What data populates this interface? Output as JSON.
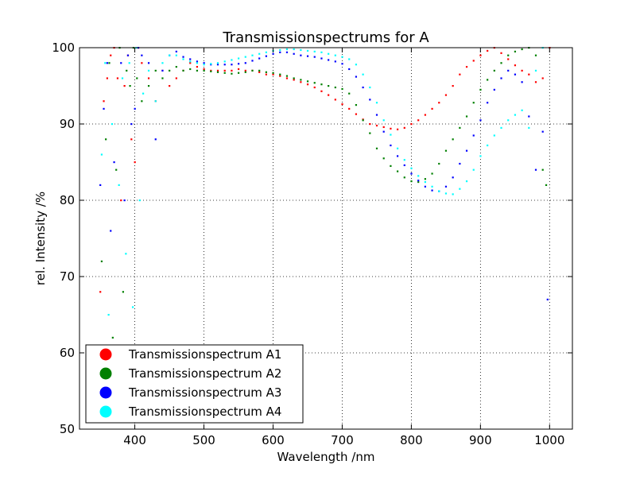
{
  "chart_data": {
    "type": "scatter",
    "title": "Transmissionspectrums for A",
    "xlabel": "Wavelength  /nm",
    "ylabel": "rel. Intensity  /%",
    "xlim": [
      320,
      1033
    ],
    "ylim": [
      50,
      100
    ],
    "xticks": [
      400,
      500,
      600,
      700,
      800,
      900,
      1000
    ],
    "yticks": [
      50,
      60,
      70,
      80,
      90,
      100
    ],
    "xtick_labels": [
      "400",
      "500",
      "600",
      "700",
      "800",
      "900",
      "1000"
    ],
    "ytick_labels": [
      "50",
      "60",
      "70",
      "80",
      "90",
      "100"
    ],
    "grid": true,
    "grid_style": "dotted",
    "legend_position": "lower-left",
    "series": [
      {
        "name": "Transmissionspectrum A1",
        "color": "#ff0000",
        "points": [
          [
            350,
            68
          ],
          [
            355,
            93
          ],
          [
            360,
            96
          ],
          [
            365,
            99
          ],
          [
            370,
            100
          ],
          [
            375,
            96
          ],
          [
            380,
            80
          ],
          [
            385,
            95
          ],
          [
            390,
            99
          ],
          [
            395,
            88
          ],
          [
            400,
            85
          ],
          [
            405,
            100
          ],
          [
            410,
            98
          ],
          [
            420,
            96
          ],
          [
            430,
            93
          ],
          [
            440,
            97
          ],
          [
            450,
            95
          ],
          [
            460,
            96
          ],
          [
            470,
            97
          ],
          [
            480,
            98
          ],
          [
            490,
            97.5
          ],
          [
            500,
            97.2
          ],
          [
            510,
            97
          ],
          [
            520,
            97
          ],
          [
            530,
            97
          ],
          [
            540,
            97
          ],
          [
            550,
            97.2
          ],
          [
            560,
            97
          ],
          [
            570,
            97
          ],
          [
            580,
            96.8
          ],
          [
            590,
            96.5
          ],
          [
            600,
            96.5
          ],
          [
            610,
            96.3
          ],
          [
            620,
            96
          ],
          [
            630,
            95.8
          ],
          [
            640,
            95.5
          ],
          [
            650,
            95.2
          ],
          [
            660,
            94.8
          ],
          [
            670,
            94.3
          ],
          [
            680,
            93.8
          ],
          [
            690,
            93.2
          ],
          [
            700,
            92.6
          ],
          [
            710,
            92
          ],
          [
            720,
            91.3
          ],
          [
            730,
            90.6
          ],
          [
            740,
            90
          ],
          [
            750,
            89.8
          ],
          [
            760,
            89.6
          ],
          [
            770,
            89.4
          ],
          [
            780,
            89.3
          ],
          [
            790,
            89.5
          ],
          [
            800,
            90
          ],
          [
            810,
            90.5
          ],
          [
            820,
            91.2
          ],
          [
            830,
            92
          ],
          [
            840,
            92.8
          ],
          [
            850,
            93.8
          ],
          [
            860,
            95
          ],
          [
            870,
            96.5
          ],
          [
            880,
            97.5
          ],
          [
            890,
            98.3
          ],
          [
            900,
            99
          ],
          [
            910,
            99.6
          ],
          [
            920,
            100
          ],
          [
            930,
            99.3
          ],
          [
            940,
            98.5
          ],
          [
            950,
            97.7
          ],
          [
            960,
            97
          ],
          [
            970,
            96.5
          ],
          [
            980,
            95.5
          ],
          [
            990,
            96
          ],
          [
            1000,
            100
          ]
        ]
      },
      {
        "name": "Transmissionspectrum A2",
        "color": "#008000",
        "points": [
          [
            352,
            72
          ],
          [
            358,
            88
          ],
          [
            363,
            98
          ],
          [
            368,
            62
          ],
          [
            373,
            84
          ],
          [
            378,
            100
          ],
          [
            383,
            68
          ],
          [
            388,
            97
          ],
          [
            393,
            95
          ],
          [
            398,
            100
          ],
          [
            403,
            96
          ],
          [
            410,
            93
          ],
          [
            420,
            95
          ],
          [
            430,
            97
          ],
          [
            440,
            96
          ],
          [
            450,
            97
          ],
          [
            460,
            97.5
          ],
          [
            470,
            97
          ],
          [
            480,
            97.2
          ],
          [
            490,
            97
          ],
          [
            500,
            97
          ],
          [
            510,
            96.9
          ],
          [
            520,
            96.8
          ],
          [
            530,
            96.7
          ],
          [
            540,
            96.6
          ],
          [
            550,
            96.7
          ],
          [
            560,
            96.8
          ],
          [
            570,
            97
          ],
          [
            580,
            97
          ],
          [
            590,
            96.8
          ],
          [
            600,
            96.7
          ],
          [
            610,
            96.5
          ],
          [
            620,
            96.3
          ],
          [
            630,
            96
          ],
          [
            640,
            95.8
          ],
          [
            650,
            95.6
          ],
          [
            660,
            95.4
          ],
          [
            670,
            95.2
          ],
          [
            680,
            95
          ],
          [
            690,
            94.8
          ],
          [
            700,
            94.6
          ],
          [
            710,
            94
          ],
          [
            720,
            92.5
          ],
          [
            730,
            90.5
          ],
          [
            740,
            88.8
          ],
          [
            750,
            86.8
          ],
          [
            760,
            85.5
          ],
          [
            770,
            84.5
          ],
          [
            780,
            83.8
          ],
          [
            790,
            83
          ],
          [
            800,
            82.5
          ],
          [
            810,
            82.4
          ],
          [
            820,
            82.8
          ],
          [
            830,
            83.5
          ],
          [
            840,
            84.8
          ],
          [
            850,
            86.5
          ],
          [
            860,
            88
          ],
          [
            870,
            89.5
          ],
          [
            880,
            91
          ],
          [
            890,
            92.8
          ],
          [
            900,
            94.5
          ],
          [
            910,
            95.8
          ],
          [
            920,
            97
          ],
          [
            930,
            98
          ],
          [
            940,
            99
          ],
          [
            950,
            99.5
          ],
          [
            960,
            99.8
          ],
          [
            970,
            100
          ],
          [
            980,
            99
          ],
          [
            990,
            84
          ],
          [
            995,
            82
          ]
        ]
      },
      {
        "name": "Transmissionspectrum A3",
        "color": "#0000ff",
        "points": [
          [
            350,
            82
          ],
          [
            355,
            92
          ],
          [
            360,
            98
          ],
          [
            365,
            76
          ],
          [
            370,
            85
          ],
          [
            375,
            57
          ],
          [
            380,
            98
          ],
          [
            385,
            80
          ],
          [
            390,
            99
          ],
          [
            395,
            90
          ],
          [
            400,
            92
          ],
          [
            405,
            100
          ],
          [
            410,
            99
          ],
          [
            420,
            98
          ],
          [
            430,
            88
          ],
          [
            440,
            97
          ],
          [
            450,
            99
          ],
          [
            460,
            99.5
          ],
          [
            470,
            98.8
          ],
          [
            480,
            98.5
          ],
          [
            490,
            98.2
          ],
          [
            500,
            98
          ],
          [
            510,
            97.8
          ],
          [
            520,
            97.8
          ],
          [
            530,
            97.8
          ],
          [
            540,
            97.8
          ],
          [
            550,
            97.9
          ],
          [
            560,
            98
          ],
          [
            570,
            98.3
          ],
          [
            580,
            98.6
          ],
          [
            590,
            98.9
          ],
          [
            600,
            99.2
          ],
          [
            610,
            99.4
          ],
          [
            620,
            99.4
          ],
          [
            630,
            99.2
          ],
          [
            640,
            99
          ],
          [
            650,
            98.9
          ],
          [
            660,
            98.8
          ],
          [
            670,
            98.6
          ],
          [
            680,
            98.4
          ],
          [
            690,
            98.2
          ],
          [
            700,
            97.9
          ],
          [
            710,
            97.2
          ],
          [
            720,
            96.2
          ],
          [
            730,
            94.8
          ],
          [
            740,
            93.2
          ],
          [
            750,
            91.2
          ],
          [
            760,
            89
          ],
          [
            770,
            87.2
          ],
          [
            780,
            85.8
          ],
          [
            790,
            84.6
          ],
          [
            800,
            83.5
          ],
          [
            810,
            82.6
          ],
          [
            820,
            81.8
          ],
          [
            830,
            81.3
          ],
          [
            840,
            81.2
          ],
          [
            850,
            81.8
          ],
          [
            860,
            83
          ],
          [
            870,
            84.8
          ],
          [
            880,
            86.5
          ],
          [
            890,
            88.5
          ],
          [
            900,
            90.5
          ],
          [
            910,
            92.8
          ],
          [
            920,
            94.5
          ],
          [
            930,
            96
          ],
          [
            940,
            97
          ],
          [
            950,
            96.5
          ],
          [
            960,
            95.5
          ],
          [
            970,
            91
          ],
          [
            980,
            84
          ],
          [
            990,
            89
          ],
          [
            997,
            67
          ]
        ]
      },
      {
        "name": "Transmissionspectrum A4",
        "color": "#00ffff",
        "points": [
          [
            352,
            86
          ],
          [
            357,
            98
          ],
          [
            362,
            65
          ],
          [
            367,
            90
          ],
          [
            372,
            60
          ],
          [
            377,
            82
          ],
          [
            382,
            96
          ],
          [
            387,
            73
          ],
          [
            392,
            98
          ],
          [
            397,
            66
          ],
          [
            402,
            100
          ],
          [
            407,
            80
          ],
          [
            412,
            94
          ],
          [
            420,
            97
          ],
          [
            430,
            93
          ],
          [
            440,
            98
          ],
          [
            450,
            99
          ],
          [
            460,
            99
          ],
          [
            470,
            98.5
          ],
          [
            480,
            98.2
          ],
          [
            490,
            98
          ],
          [
            500,
            97.8
          ],
          [
            510,
            97.9
          ],
          [
            520,
            98
          ],
          [
            530,
            98.2
          ],
          [
            540,
            98.4
          ],
          [
            550,
            98.6
          ],
          [
            560,
            98.8
          ],
          [
            570,
            99
          ],
          [
            580,
            99.2
          ],
          [
            590,
            99.4
          ],
          [
            600,
            99.6
          ],
          [
            610,
            99.7
          ],
          [
            620,
            99.8
          ],
          [
            630,
            99.8
          ],
          [
            640,
            99.7
          ],
          [
            650,
            99.6
          ],
          [
            660,
            99.5
          ],
          [
            670,
            99.4
          ],
          [
            680,
            99.2
          ],
          [
            690,
            99
          ],
          [
            700,
            98.8
          ],
          [
            710,
            98.5
          ],
          [
            720,
            97.8
          ],
          [
            730,
            96.5
          ],
          [
            740,
            94.8
          ],
          [
            750,
            92.8
          ],
          [
            760,
            90.5
          ],
          [
            770,
            88.6
          ],
          [
            780,
            86.8
          ],
          [
            790,
            85.3
          ],
          [
            800,
            84.2
          ],
          [
            810,
            83.2
          ],
          [
            820,
            82.4
          ],
          [
            830,
            81.8
          ],
          [
            840,
            81.2
          ],
          [
            850,
            80.9
          ],
          [
            860,
            80.8
          ],
          [
            870,
            81.5
          ],
          [
            880,
            82.5
          ],
          [
            890,
            84
          ],
          [
            900,
            85.8
          ],
          [
            910,
            87.2
          ],
          [
            920,
            88.5
          ],
          [
            930,
            89.5
          ],
          [
            940,
            90.5
          ],
          [
            950,
            91.2
          ],
          [
            960,
            91.8
          ],
          [
            970,
            89.5
          ],
          [
            980,
            97
          ],
          [
            990,
            100
          ]
        ]
      }
    ]
  }
}
